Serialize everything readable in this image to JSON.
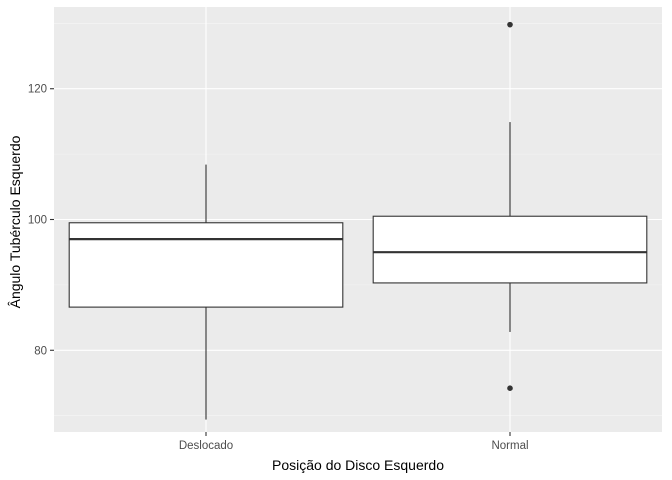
{
  "chart_data": {
    "type": "boxplot",
    "title": "",
    "xlabel": "Posição do Disco Esquerdo",
    "ylabel": "Ângulo Tubérculo Esquerdo",
    "ylim": [
      67.5,
      132.5
    ],
    "yticks": [
      80,
      100,
      120
    ],
    "yminor": [
      70,
      90,
      110,
      130
    ],
    "grid": true,
    "legend": "none",
    "categories": [
      "Deslocado",
      "Normal"
    ],
    "boxes": [
      {
        "category": "Deslocado",
        "whisker_low": 69.4,
        "q1": 86.6,
        "median": 97.0,
        "q3": 99.5,
        "whisker_high": 108.4,
        "outliers": []
      },
      {
        "category": "Normal",
        "whisker_low": 82.8,
        "q1": 90.3,
        "median": 95.0,
        "q3": 100.5,
        "whisker_high": 114.9,
        "outliers": [
          74.2,
          129.8
        ]
      }
    ],
    "colors": {
      "panel": "#ebebeb",
      "grid_major": "#ffffff",
      "grid_minor": "#f5f5f5",
      "box_fill": "#ffffff",
      "box_line": "#333333",
      "outlier": "#333333"
    }
  }
}
